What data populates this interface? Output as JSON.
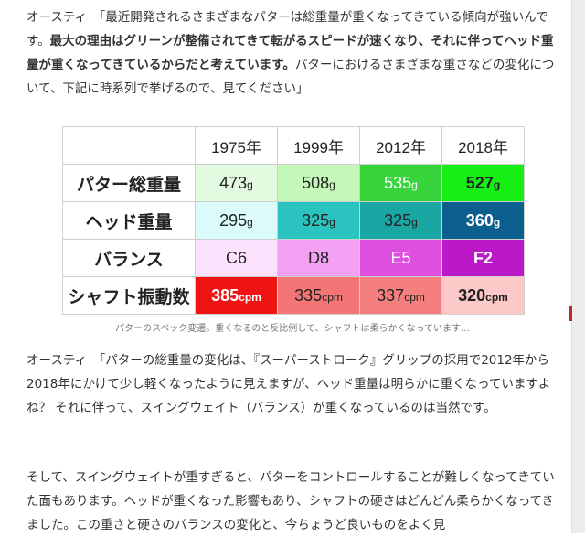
{
  "paragraphs": {
    "p1_a": "オースティ　「最近開発されるさまざまなパターは総重量が重くなってきている傾向が強いんです。",
    "p1_bold": "最大の理由はグリーンが整備されてきて転がるスピードが速くなり、それに伴ってヘッド重量が重くなってきているからだと考えています。",
    "p1_b": "パターにおけるさまざまな重さなどの変化について、下記に時系列で挙げるので、見てください」",
    "p2": "オースティ　「パターの総重量の変化は、『スーパーストローク』グリップの採用で2012年から2018年にかけて少し軽くなったように見えますが、ヘッド重量は明らかに重くなっていますよね？ それに伴って、スイングウェイト（バランス）が重くなっているのは当然です。",
    "p3": "そして、スイングウェイトが重すぎると、パターをコントロールすることが難しくなってきていた面もあります。ヘッドが重くなった影響もあり、シャフトの硬さはどんどん柔らかくなってきました。この重さと硬さのバランスの変化と、今ちょうど良いものをよく見"
  },
  "table": {
    "years": [
      "1975年",
      "1999年",
      "2012年",
      "2018年"
    ],
    "rows": [
      {
        "label": "パター総重量",
        "cells": [
          {
            "value": "473",
            "unit": "g",
            "bg": "#e2fbe0",
            "bold": false,
            "fg": "#222222"
          },
          {
            "value": "508",
            "unit": "g",
            "bg": "#c5f7b9",
            "bold": false,
            "fg": "#222222"
          },
          {
            "value": "535",
            "unit": "g",
            "bg": "#37d53b",
            "bold": false,
            "fg": "#ffffff"
          },
          {
            "value": "527",
            "unit": "g",
            "bg": "#16ef16",
            "bold": true,
            "fg": "#222222"
          }
        ]
      },
      {
        "label": "ヘッド重量",
        "cells": [
          {
            "value": "295",
            "unit": "g",
            "bg": "#dcfcfc",
            "bold": false,
            "fg": "#222222"
          },
          {
            "value": "325",
            "unit": "g",
            "bg": "#2bc3bf",
            "bold": false,
            "fg": "#222222"
          },
          {
            "value": "325",
            "unit": "g",
            "bg": "#1aa7a3",
            "bold": false,
            "fg": "#222222"
          },
          {
            "value": "360",
            "unit": "g",
            "bg": "#0b5e8d",
            "bold": true,
            "fg": "#ffffff"
          }
        ]
      },
      {
        "label": "バランス",
        "cells": [
          {
            "value": "C6",
            "unit": "",
            "bg": "#fde2fd",
            "bold": false,
            "fg": "#222222"
          },
          {
            "value": "D8",
            "unit": "",
            "bg": "#f3a0f3",
            "bold": false,
            "fg": "#222222"
          },
          {
            "value": "E5",
            "unit": "",
            "bg": "#de4fe0",
            "bold": false,
            "fg": "#ffffff"
          },
          {
            "value": "F2",
            "unit": "",
            "bg": "#bb18c8",
            "bold": true,
            "fg": "#ffffff"
          }
        ]
      },
      {
        "label": "シャフト振動数",
        "cells": [
          {
            "value": "385",
            "unit": "cpm",
            "bg": "#ee1414",
            "bold": true,
            "fg": "#ffffff"
          },
          {
            "value": "335",
            "unit": "cpm",
            "bg": "#f47575",
            "bold": false,
            "fg": "#222222"
          },
          {
            "value": "337",
            "unit": "cpm",
            "bg": "#f57e7e",
            "bold": false,
            "fg": "#222222"
          },
          {
            "value": "320",
            "unit": "cpm",
            "bg": "#fcc8c8",
            "bold": true,
            "fg": "#222222"
          }
        ]
      }
    ]
  },
  "caption": "パターのスペック変遷。重くなるのと反比例して、シャフトは柔らかくなっています…"
}
